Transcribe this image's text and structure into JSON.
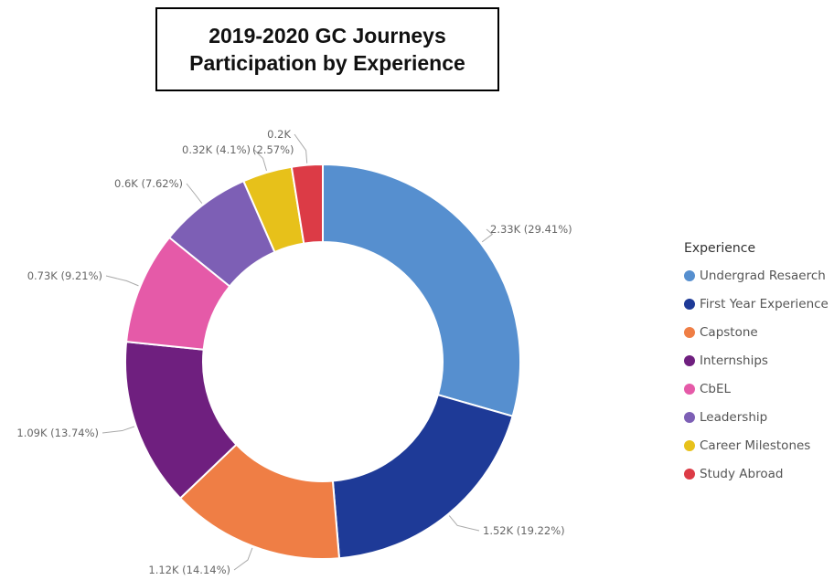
{
  "title": {
    "line1": "2019-2020 GC Journeys",
    "line2": "Participation by Experience"
  },
  "legend_title": "Experience",
  "chart_data": {
    "type": "pie",
    "donut": true,
    "title": "2019-2020 GC Journeys Participation by Experience",
    "legend_title": "Experience",
    "legend_position": "right",
    "categories": [
      "Undergrad Resaerch",
      "First Year Experience",
      "Capstone",
      "Internships",
      "CbEL",
      "Leadership",
      "Career Milestones",
      "Study Abroad"
    ],
    "values": [
      2330,
      1520,
      1120,
      1090,
      730,
      600,
      320,
      200
    ],
    "percents": [
      29.41,
      19.22,
      14.14,
      13.74,
      9.21,
      7.62,
      4.1,
      2.57
    ],
    "colors": [
      "#568fcf",
      "#1e3a97",
      "#ef7e45",
      "#6f1f7f",
      "#e55aa8",
      "#7d5fb5",
      "#e7c11a",
      "#dc3b46"
    ],
    "data_labels": [
      "2.33K (29.41%)",
      "1.52K (19.22%)",
      "1.12K (14.14%)",
      "1.09K (13.74%)",
      "0.73K (9.21%)",
      "0.6K (7.62%)",
      "0.32K (4.1%)",
      "0.2K"
    ],
    "extra_label": "(2.57%)"
  }
}
